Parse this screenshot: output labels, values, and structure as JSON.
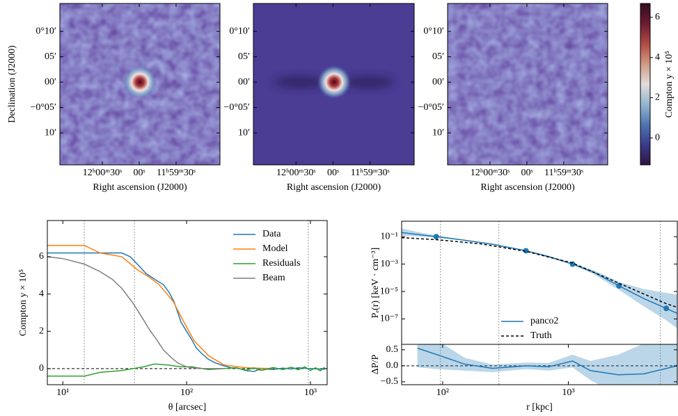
{
  "chart_data": [
    {
      "type": "image",
      "xlabel": "Right ascension (J2000)",
      "ylabel": "Declination (J2000)",
      "xlim": [
        64.5,
        -65.7
      ],
      "ylim": [
        -16.3,
        15.5
      ],
      "xticks": [
        {
          "value": 30,
          "label": "12ʰ00ᵐ30ˢ"
        },
        {
          "value": 0,
          "label": "00ˢ"
        },
        {
          "value": -30,
          "label": "11ʰ59ᵐ30ˢ"
        }
      ],
      "yticks": [
        {
          "value": 10,
          "label": "0°10′"
        },
        {
          "value": 5,
          "label": "05′"
        },
        {
          "value": 0,
          "label": "00′"
        },
        {
          "value": -5,
          "label": "−0°05′"
        },
        {
          "value": -10,
          "label": "10′"
        }
      ]
    },
    {
      "type": "image",
      "xlabel": "Right ascension (J2000)",
      "xlim": [
        64.5,
        -65.7
      ],
      "ylim": [
        -16.3,
        15.5
      ],
      "xticks": [
        {
          "value": 30,
          "label": "12ʰ00ᵐ30ˢ"
        },
        {
          "value": 0,
          "label": "00ˢ"
        },
        {
          "value": -30,
          "label": "11ʰ59ᵐ30ˢ"
        }
      ],
      "yticks": [
        {
          "value": 10,
          "label": "0°10′"
        },
        {
          "value": 5,
          "label": "05′"
        },
        {
          "value": 0,
          "label": "00′"
        },
        {
          "value": -5,
          "label": "−0°05′"
        },
        {
          "value": -10,
          "label": "10′"
        }
      ]
    },
    {
      "type": "image",
      "xlabel": "Right ascension (J2000)",
      "xlim": [
        64.5,
        -65.7
      ],
      "ylim": [
        -16.3,
        15.5
      ],
      "xticks": [
        {
          "value": 30,
          "label": "12ʰ00ᵐ30ˢ"
        },
        {
          "value": 0,
          "label": "00ˢ"
        },
        {
          "value": -30,
          "label": "11ʰ59ᵐ30ˢ"
        }
      ],
      "yticks": [
        {
          "value": 10,
          "label": "0°10′"
        },
        {
          "value": 5,
          "label": "05′"
        },
        {
          "value": 0,
          "label": "00′"
        },
        {
          "value": -5,
          "label": "−0°05′"
        },
        {
          "value": -10,
          "label": "10′"
        }
      ]
    },
    {
      "type": "colorbar",
      "ylabel": "Compton y × 10⁵",
      "ylim": [
        -1.34,
        6.69
      ],
      "yticks": [
        0,
        2,
        4,
        6
      ],
      "colormap": [
        "#2f1442",
        "#3a3b8a",
        "#4f74b0",
        "#93b7cf",
        "#e2dcdc",
        "#d09a82",
        "#b04c42",
        "#6d1a33",
        "#300c1d"
      ]
    },
    {
      "type": "line",
      "xlabel": "θ [arcsec]",
      "ylabel": "Compton y × 10⁵",
      "xscale": "log",
      "xlim": [
        7.5,
        1365
      ],
      "ylim": [
        -0.86,
        7.94
      ],
      "xticks": [
        {
          "value": 10,
          "label": "10¹"
        },
        {
          "value": 100,
          "label": "10²"
        },
        {
          "value": 1000,
          "label": "10³"
        }
      ],
      "yticks": [
        0,
        2,
        4,
        6
      ],
      "vlines": [
        14.9,
        37.9,
        961
      ],
      "hline": 0,
      "legend": "upper right",
      "series": [
        {
          "name": "Data",
          "color": "#1f77b4",
          "x": [
            7.5,
            15,
            20,
            30,
            35,
            40,
            47,
            55,
            65,
            72,
            79,
            85,
            90,
            100,
            109,
            120,
            133,
            150,
            172,
            200,
            229,
            260,
            300,
            350,
            400,
            500,
            600,
            700,
            800,
            1000,
            1300
          ],
          "values": [
            6.2,
            6.2,
            6.2,
            6.2,
            6.0,
            5.6,
            5.1,
            4.8,
            4.5,
            4.1,
            3.6,
            3.0,
            2.5,
            2.0,
            1.6,
            1.1,
            0.8,
            0.5,
            0.3,
            0.15,
            0.05,
            0.02,
            -0.1,
            -0.15,
            0.0,
            -0.05,
            0.03,
            -0.02,
            0.05,
            0.0,
            -0.03
          ]
        },
        {
          "name": "Model",
          "color": "#ff7f0e",
          "x": [
            7.5,
            15,
            20,
            30,
            40,
            50,
            60,
            78,
            95,
            115,
            150,
            200,
            300,
            500
          ],
          "values": [
            6.6,
            6.6,
            6.2,
            6.0,
            5.3,
            4.9,
            4.5,
            3.6,
            2.5,
            1.5,
            0.7,
            0.2,
            0.05,
            0.0
          ]
        },
        {
          "name": "Residuals",
          "color": "#2ca02c",
          "x": [
            7.5,
            15,
            20,
            30,
            45,
            55,
            70,
            90,
            110,
            150,
            200,
            250,
            300,
            350,
            400,
            500,
            600,
            700,
            800,
            900,
            1000,
            1100,
            1200,
            1300
          ],
          "values": [
            -0.4,
            -0.4,
            -0.2,
            -0.1,
            0.1,
            0.25,
            0.2,
            0.1,
            0.1,
            -0.05,
            0.0,
            0.05,
            -0.08,
            0.04,
            -0.1,
            0.06,
            -0.05,
            0.08,
            -0.06,
            0.1,
            -0.1,
            0.05,
            -0.12,
            0.08
          ]
        },
        {
          "name": "Beam",
          "color": "#7f7f7f",
          "x": [
            7.5,
            10,
            15,
            20,
            25,
            30,
            37,
            45,
            50,
            58,
            65,
            75,
            85,
            100,
            110,
            130,
            150,
            200
          ],
          "values": [
            6.0,
            5.9,
            5.6,
            5.2,
            4.8,
            4.3,
            3.5,
            2.6,
            2.1,
            1.5,
            1.0,
            0.6,
            0.3,
            0.1,
            0.05,
            0.01,
            0,
            0
          ]
        }
      ]
    },
    {
      "type": "line",
      "ylabel": "Pₑ(r) [keV · cm⁻³]",
      "xscale": "log",
      "yscale": "log",
      "xlim": [
        47.2,
        7360
      ],
      "ylim": [
        1.4e-09,
        1.34
      ],
      "yticks": [
        {
          "value": 0.1,
          "label": "10⁻¹"
        },
        {
          "value": 0.001,
          "label": "10⁻³"
        },
        {
          "value": 1e-05,
          "label": "10⁻⁵"
        },
        {
          "value": 1e-07,
          "label": "10⁻⁷"
        }
      ],
      "vlines": [
        96,
        280,
        5400
      ],
      "legend": "lower center",
      "series": [
        {
          "name": "panco2",
          "color": "#1f77b4",
          "x": [
            47.2,
            70,
            90,
            150,
            250,
            460,
            700,
            1080,
            1600,
            2530,
            4000,
            6010,
            7360
          ],
          "values": [
            0.2,
            0.13,
            0.1,
            0.055,
            0.028,
            0.0094,
            0.0035,
            0.001,
            0.00025,
            2.6e-05,
            3e-06,
            5.9e-07,
            2.5e-07
          ],
          "band_low": [
            0.12,
            0.1,
            0.085,
            0.05,
            0.025,
            0.0085,
            0.003,
            0.0009,
            0.00018,
            1.3e-05,
            8e-07,
            8e-08,
            2e-08
          ],
          "band_high": [
            0.4,
            0.18,
            0.12,
            0.06,
            0.031,
            0.0105,
            0.004,
            0.0011,
            0.00035,
            5e-05,
            1.5e-05,
            8e-06,
            6e-06
          ],
          "markers": {
            "x": [
              89,
              460,
              1080,
              2530,
              6010
            ],
            "values": [
              0.1,
              0.0094,
              0.001,
              2.6e-05,
              5.9e-07
            ]
          }
        },
        {
          "name": "Truth",
          "color": "#000000",
          "dash": true,
          "x": [
            47.2,
            90,
            200,
            460,
            1080,
            2530,
            6010,
            7360
          ],
          "values": [
            0.085,
            0.06,
            0.03,
            0.0085,
            0.0012,
            4e-05,
            1.3e-06,
            7e-07
          ]
        }
      ]
    },
    {
      "type": "line",
      "xlabel": "r [kpc]",
      "ylabel": "ΔP/P",
      "xscale": "log",
      "xlim": [
        47.2,
        7360
      ],
      "ylim": [
        -0.59,
        0.67
      ],
      "xticks": [
        {
          "value": 100,
          "label": "10²"
        },
        {
          "value": 1000,
          "label": "10³"
        }
      ],
      "yticks": [
        0.5,
        {
          "value": 0,
          "label": "0.0"
        },
        {
          "value": -0.5,
          "label": "−0.5"
        }
      ],
      "vlines": [
        96,
        280,
        5400
      ],
      "hline": 0,
      "series": [
        {
          "color": "#1f77b4",
          "x": [
            63,
            90,
            150,
            250,
            460,
            700,
            1080,
            1500,
            2500,
            4000,
            7360
          ],
          "values": [
            0.55,
            0.35,
            0.05,
            -0.08,
            0.0,
            -0.03,
            0.15,
            -0.15,
            -0.28,
            -0.25,
            0.0
          ],
          "band_low": [
            -0.05,
            -0.1,
            -0.15,
            -0.2,
            -0.1,
            -0.15,
            -0.05,
            -0.45,
            -0.9,
            -1.2,
            -1.2
          ],
          "band_high": [
            1.2,
            0.8,
            0.25,
            0.04,
            0.1,
            0.09,
            0.35,
            0.15,
            0.35,
            0.7,
            1.2
          ]
        }
      ]
    }
  ]
}
